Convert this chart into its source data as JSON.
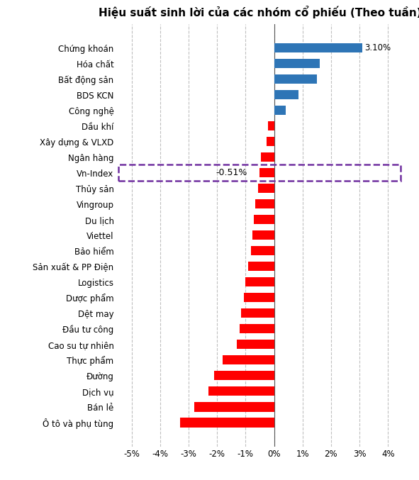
{
  "title": "Hiệu suất sinh lời của các nhóm cổ phiếu (Theo tuần)",
  "categories": [
    "Chứng khoán",
    "Hóa chất",
    "Bất động sản",
    "BDS KCN",
    "Công nghệ",
    "Dầu khí",
    "Xây dựng & VLXD",
    "Ngân hàng",
    "Vn-Index",
    "Thủy sản",
    "Vingroup",
    "Du lịch",
    "Viettel",
    "Bảo hiểm",
    "Sản xuất & PP Điện",
    "Logistics",
    "Dược phẩm",
    "Dệt may",
    "Đầu tư công",
    "Cao su tự nhiên",
    "Thực phẩm",
    "Đường",
    "Dịch vụ",
    "Bán lẻ",
    "Ô tô và phụ tùng"
  ],
  "values": [
    3.1,
    1.6,
    1.5,
    0.85,
    0.4,
    -0.2,
    -0.25,
    -0.45,
    -0.51,
    -0.55,
    -0.65,
    -0.7,
    -0.75,
    -0.8,
    -0.9,
    -1.0,
    -1.05,
    -1.15,
    -1.2,
    -1.3,
    -1.8,
    -2.1,
    -2.3,
    -2.8,
    -3.3
  ],
  "bar_colors_positive": "#2e75b6",
  "bar_colors_negative": "#ff0000",
  "vn_index_label": "-0.51%",
  "annotation_3_10": "3.10%",
  "xlim": [
    -5.5,
    4.5
  ],
  "xticks": [
    -5,
    -4,
    -3,
    -2,
    -1,
    0,
    1,
    2,
    3,
    4
  ],
  "xtick_labels": [
    "-5%",
    "-4%",
    "-3%",
    "-2%",
    "-1%",
    "0%",
    "1%",
    "2%",
    "3%",
    "4%"
  ],
  "background_color": "#ffffff",
  "grid_color": "#c0c0c0",
  "title_fontsize": 11,
  "tick_fontsize": 8.5,
  "bar_height": 0.6,
  "vn_index_box_color": "#7030a0",
  "vn_index_row_index": 8
}
